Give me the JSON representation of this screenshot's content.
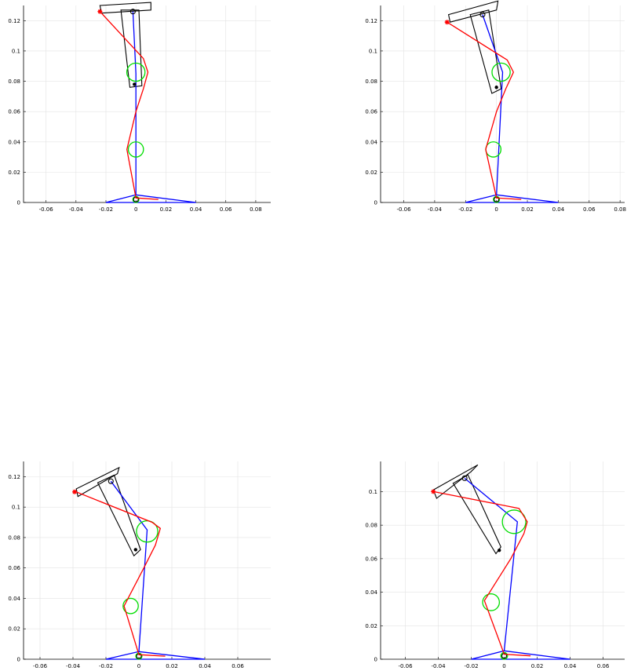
{
  "chart_data": [
    {
      "type": "line",
      "xlim": [
        -0.075,
        0.09
      ],
      "ylim": [
        0,
        0.13
      ],
      "xticks": [
        "-0.06",
        "-0.04",
        "-0.02",
        "0",
        "0.02",
        "0.04",
        "0.06",
        "0.08"
      ],
      "yticks": [
        "0",
        "0.02",
        "0.04",
        "0.06",
        "0.08",
        "0.1",
        "0.12"
      ],
      "grid": true,
      "base": [
        [
          -0.02,
          0
        ],
        [
          0,
          0.005
        ],
        [
          0.04,
          0
        ]
      ],
      "bone": [
        [
          0,
          0.005
        ],
        [
          0,
          0.085
        ],
        [
          -0.002,
          0.126
        ]
      ],
      "red_path": [
        [
          0.015,
          0.002
        ],
        [
          0,
          0.003
        ],
        [
          -0.006,
          0.035
        ],
        [
          0,
          0.06
        ],
        [
          0.005,
          0.075
        ],
        [
          0.008,
          0.086
        ],
        [
          0.005,
          0.095
        ],
        [
          -0.024,
          0.126
        ]
      ],
      "green_circles": [
        [
          0,
          0.035,
          0.005
        ],
        [
          0,
          0.086,
          0.006
        ],
        [
          0,
          0.002,
          0.002
        ]
      ],
      "blue_circles": [
        [
          -0.002,
          0.126,
          0.0018
        ],
        [
          0,
          0.002,
          0.0018
        ]
      ],
      "body": [
        [
          -0.01,
          0.127
        ],
        [
          0.002,
          0.127
        ],
        [
          0.004,
          0.077
        ],
        [
          -0.004,
          0.076
        ]
      ],
      "bar": [
        [
          -0.023,
          0.125
        ],
        [
          0.01,
          0.127
        ],
        [
          0.01,
          0.132
        ],
        [
          -0.024,
          0.13
        ]
      ],
      "star": [
        -0.024,
        0.126
      ],
      "dot": [
        -0.001,
        0.078
      ]
    },
    {
      "type": "line",
      "xlim": [
        -0.075,
        0.085
      ],
      "ylim": [
        0,
        0.13
      ],
      "xticks": [
        "-0.06",
        "-0.04",
        "-0.02",
        "0",
        "0.02",
        "0.04",
        "0.06",
        "0.08"
      ],
      "yticks": [
        "0",
        "0.02",
        "0.04",
        "0.06",
        "0.08",
        "0.1",
        "0.12"
      ],
      "grid": true,
      "base": [
        [
          -0.02,
          0
        ],
        [
          0,
          0.005
        ],
        [
          0.04,
          0
        ]
      ],
      "bone": [
        [
          0,
          0.005
        ],
        [
          0.004,
          0.086
        ],
        [
          -0.009,
          0.124
        ]
      ],
      "red_path": [
        [
          0.016,
          0.002
        ],
        [
          0,
          0.003
        ],
        [
          -0.007,
          0.035
        ],
        [
          0,
          0.06
        ],
        [
          0.006,
          0.075
        ],
        [
          0.011,
          0.086
        ],
        [
          0.007,
          0.094
        ],
        [
          -0.032,
          0.119
        ]
      ],
      "green_circles": [
        [
          -0.002,
          0.035,
          0.005
        ],
        [
          0.003,
          0.086,
          0.006
        ],
        [
          0,
          0.002,
          0.002
        ]
      ],
      "blue_circles": [
        [
          -0.009,
          0.124,
          0.0018
        ],
        [
          0,
          0.002,
          0.0018
        ]
      ],
      "body": [
        [
          -0.017,
          0.124
        ],
        [
          -0.005,
          0.127
        ],
        [
          0.003,
          0.075
        ],
        [
          -0.003,
          0.072
        ]
      ],
      "bar": [
        [
          -0.03,
          0.119
        ],
        [
          0.0,
          0.127
        ],
        [
          0.001,
          0.133
        ],
        [
          -0.031,
          0.124
        ]
      ],
      "star": [
        -0.032,
        0.119
      ],
      "dot": [
        0,
        0.076
      ]
    },
    {
      "type": "line",
      "xlim": [
        -0.07,
        0.08
      ],
      "ylim": [
        0,
        0.13
      ],
      "xticks": [
        "-0.06",
        "-0.04",
        "-0.02",
        "0",
        "0.02",
        "0.04",
        "0.06"
      ],
      "yticks": [
        "0",
        "0.02",
        "0.04",
        "0.06",
        "0.08",
        "0.1",
        "0.12"
      ],
      "grid": true,
      "base": [
        [
          -0.02,
          0
        ],
        [
          0,
          0.005
        ],
        [
          0.04,
          0
        ]
      ],
      "bone": [
        [
          0,
          0.005
        ],
        [
          0.005,
          0.085
        ],
        [
          -0.017,
          0.117
        ]
      ],
      "red_path": [
        [
          0.016,
          0.002
        ],
        [
          0,
          0.003
        ],
        [
          -0.009,
          0.035
        ],
        [
          0.003,
          0.06
        ],
        [
          0.01,
          0.075
        ],
        [
          0.013,
          0.086
        ],
        [
          0.008,
          0.09
        ],
        [
          -0.038,
          0.11
        ]
      ],
      "green_circles": [
        [
          -0.005,
          0.035,
          0.005
        ],
        [
          0.005,
          0.084,
          0.007
        ],
        [
          0,
          0.002,
          0.002
        ]
      ],
      "blue_circles": [
        [
          -0.017,
          0.117,
          0.0018
        ],
        [
          0,
          0.002,
          0.0018
        ]
      ],
      "body": [
        [
          -0.025,
          0.116
        ],
        [
          -0.015,
          0.121
        ],
        [
          0.001,
          0.072
        ],
        [
          -0.003,
          0.068
        ]
      ],
      "bar": [
        [
          -0.037,
          0.107
        ],
        [
          -0.013,
          0.122
        ],
        [
          -0.012,
          0.126
        ],
        [
          -0.038,
          0.112
        ]
      ],
      "star": [
        -0.039,
        0.11
      ],
      "dot": [
        -0.002,
        0.072
      ]
    },
    {
      "type": "line",
      "xlim": [
        -0.075,
        0.075
      ],
      "ylim": [
        0,
        0.118
      ],
      "xticks": [
        "-0.06",
        "-0.04",
        "-0.02",
        "0",
        "0.02",
        "0.04",
        "0.06"
      ],
      "yticks": [
        "0",
        "0.02",
        "0.04",
        "0.06",
        "0.08",
        "0.1"
      ],
      "grid": true,
      "base": [
        [
          -0.02,
          0
        ],
        [
          0,
          0.005
        ],
        [
          0.04,
          0
        ]
      ],
      "bone": [
        [
          0,
          0.005
        ],
        [
          0.008,
          0.082
        ],
        [
          -0.024,
          0.108
        ]
      ],
      "red_path": [
        [
          0.016,
          0.002
        ],
        [
          0,
          0.003
        ],
        [
          -0.012,
          0.035
        ],
        [
          0.004,
          0.06
        ],
        [
          0.012,
          0.075
        ],
        [
          0.014,
          0.082
        ],
        [
          0.009,
          0.09
        ],
        [
          -0.043,
          0.1
        ]
      ],
      "green_circles": [
        [
          -0.008,
          0.034,
          0.005
        ],
        [
          0.006,
          0.082,
          0.007
        ],
        [
          0,
          0.002,
          0.002
        ]
      ],
      "blue_circles": [
        [
          -0.024,
          0.108,
          0.0018
        ],
        [
          0,
          0.002,
          0.0018
        ]
      ],
      "body": [
        [
          -0.031,
          0.105
        ],
        [
          -0.022,
          0.11
        ],
        [
          -0.002,
          0.067
        ],
        [
          -0.005,
          0.063
        ]
      ],
      "bar": [
        [
          -0.041,
          0.096
        ],
        [
          -0.02,
          0.112
        ],
        [
          -0.016,
          0.116
        ],
        [
          -0.043,
          0.101
        ]
      ],
      "star": [
        -0.043,
        0.1
      ],
      "dot": [
        -0.003,
        0.065
      ]
    }
  ]
}
